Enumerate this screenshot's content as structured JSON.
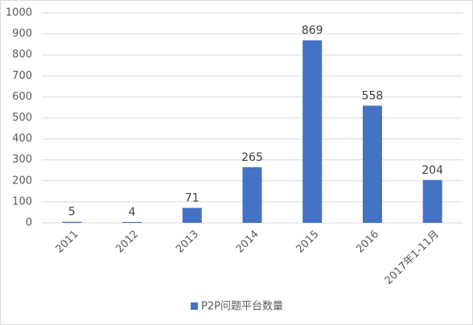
{
  "chart_data": {
    "type": "bar",
    "categories": [
      "2011",
      "2012",
      "2013",
      "2014",
      "2015",
      "2016",
      "2017年1-11月"
    ],
    "series": [
      {
        "name": "P2P问题平台数量",
        "color": "#4472c4",
        "values": [
          5,
          4,
          71,
          265,
          869,
          558,
          204
        ]
      }
    ],
    "ylim": [
      0,
      1000
    ],
    "yticks": [
      0,
      100,
      200,
      300,
      400,
      500,
      600,
      700,
      800,
      900,
      1000
    ],
    "grid": true,
    "legend": "bottom"
  }
}
